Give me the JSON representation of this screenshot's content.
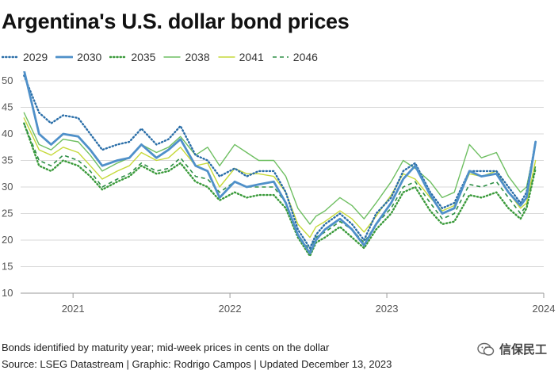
{
  "header": {
    "title": "Argentina's U.S. dollar bond prices"
  },
  "footer": {
    "note": "Bonds identified by maturity year; mid-week prices in cents on the dollar",
    "source": "Source: LSEG Datastream | Graphic: Rodrigo Campos | Updated December 13, 2023",
    "watermark_text": "信保民工",
    "watermark_icon": "wechat-icon"
  },
  "colors": {
    "s2029": "#2a6ea8",
    "s2030": "#4f90c9",
    "s2035": "#3a9a3a",
    "s2038": "#6fbf62",
    "s2041": "#c6d93a",
    "s2046": "#2e8f46",
    "grid": "#d9d9d9",
    "axis_text": "#555555"
  },
  "chart_data": {
    "type": "line",
    "title": "Argentina's U.S. dollar bond prices",
    "xlabel": "",
    "ylabel": "",
    "x_range": [
      "2020-09-01",
      "2024-01-01"
    ],
    "ylim": [
      10,
      50
    ],
    "y_ticks": [
      10,
      15,
      20,
      25,
      30,
      35,
      40,
      45,
      50
    ],
    "x_tick_labels": [
      "2021",
      "2022",
      "2023",
      "2024"
    ],
    "x_tick_dates": [
      "2021-01-01",
      "2022-01-01",
      "2023-01-01",
      "2024-01-01"
    ],
    "grid": true,
    "legend_position": "top-left",
    "x": [
      "2020-09-09",
      "2020-10-14",
      "2020-11-11",
      "2020-12-09",
      "2021-01-13",
      "2021-02-10",
      "2021-03-10",
      "2021-04-14",
      "2021-05-12",
      "2021-06-09",
      "2021-07-14",
      "2021-08-11",
      "2021-09-08",
      "2021-10-13",
      "2021-11-10",
      "2021-12-08",
      "2022-01-12",
      "2022-02-09",
      "2022-03-09",
      "2022-04-13",
      "2022-05-11",
      "2022-06-08",
      "2022-07-06",
      "2022-07-20",
      "2022-08-10",
      "2022-09-14",
      "2022-10-12",
      "2022-11-09",
      "2022-12-07",
      "2023-01-11",
      "2023-02-08",
      "2023-03-08",
      "2023-04-12",
      "2023-05-10",
      "2023-06-07",
      "2023-07-12",
      "2023-08-09",
      "2023-09-13",
      "2023-10-11",
      "2023-11-08",
      "2023-11-22",
      "2023-12-13"
    ],
    "series": [
      {
        "name": "2029",
        "style": "dotted",
        "values": [
          51.0,
          44.0,
          42.0,
          43.5,
          43.0,
          40.0,
          37.0,
          38.0,
          38.5,
          41.0,
          38.0,
          39.0,
          41.5,
          36.0,
          35.0,
          32.0,
          33.5,
          32.0,
          33.0,
          33.0,
          29.0,
          22.0,
          18.5,
          21.0,
          23.0,
          25.0,
          23.0,
          20.0,
          25.0,
          28.0,
          33.0,
          34.5,
          29.0,
          26.0,
          27.0,
          33.0,
          33.0,
          33.0,
          30.0,
          27.0,
          29.0,
          38.5
        ]
      },
      {
        "name": "2030",
        "style": "solid",
        "values": [
          52.0,
          40.0,
          38.0,
          40.0,
          39.5,
          37.0,
          34.0,
          35.0,
          35.5,
          38.0,
          35.5,
          37.0,
          39.0,
          34.0,
          33.0,
          28.0,
          31.0,
          30.0,
          30.5,
          31.0,
          27.0,
          21.0,
          17.5,
          20.0,
          22.0,
          24.0,
          22.0,
          19.0,
          23.0,
          27.0,
          31.5,
          34.0,
          28.5,
          25.0,
          26.0,
          33.0,
          32.0,
          32.5,
          29.0,
          26.5,
          28.0,
          38.5
        ]
      },
      {
        "name": "2035",
        "style": "dotted",
        "values": [
          42.0,
          34.0,
          33.0,
          35.0,
          34.0,
          32.0,
          29.5,
          31.0,
          32.0,
          34.0,
          32.5,
          33.0,
          34.5,
          31.0,
          30.0,
          27.5,
          29.0,
          28.0,
          28.5,
          28.5,
          26.0,
          20.5,
          17.0,
          19.5,
          20.5,
          22.5,
          20.5,
          18.5,
          22.0,
          25.0,
          29.0,
          30.0,
          25.5,
          23.0,
          23.5,
          28.5,
          28.0,
          29.0,
          26.0,
          24.0,
          26.0,
          33.5
        ]
      },
      {
        "name": "2038",
        "style": "solid",
        "values": [
          44.0,
          38.0,
          37.0,
          39.0,
          38.5,
          36.0,
          33.0,
          34.5,
          35.5,
          38.0,
          36.5,
          37.5,
          39.5,
          36.0,
          37.5,
          34.0,
          38.0,
          36.5,
          35.0,
          35.0,
          32.0,
          26.0,
          23.0,
          24.5,
          25.5,
          28.0,
          26.5,
          24.0,
          27.0,
          31.0,
          35.0,
          33.5,
          31.0,
          28.0,
          29.0,
          38.0,
          35.5,
          36.5,
          32.0,
          29.0,
          30.0,
          38.0
        ]
      },
      {
        "name": "2041",
        "style": "solid",
        "values": [
          43.0,
          37.0,
          36.0,
          37.5,
          36.5,
          34.0,
          31.5,
          33.0,
          34.0,
          36.5,
          35.0,
          35.5,
          37.5,
          34.0,
          34.5,
          30.0,
          33.5,
          32.5,
          32.5,
          32.0,
          29.0,
          23.0,
          20.5,
          22.5,
          23.5,
          25.5,
          24.0,
          21.5,
          24.5,
          28.5,
          32.5,
          31.5,
          28.0,
          25.5,
          26.5,
          32.5,
          32.0,
          33.0,
          29.0,
          26.0,
          27.0,
          35.0
        ]
      },
      {
        "name": "2046",
        "style": "dashed",
        "values": [
          42.0,
          35.0,
          34.0,
          36.0,
          35.0,
          33.0,
          30.0,
          31.5,
          32.5,
          34.5,
          33.0,
          33.5,
          35.5,
          32.0,
          31.5,
          29.0,
          31.0,
          30.0,
          30.0,
          30.0,
          27.0,
          21.0,
          18.0,
          20.5,
          21.5,
          23.5,
          22.0,
          19.5,
          23.0,
          26.0,
          30.0,
          31.0,
          27.0,
          24.0,
          25.0,
          30.5,
          30.0,
          31.0,
          28.0,
          25.0,
          26.5,
          34.0
        ]
      }
    ]
  }
}
